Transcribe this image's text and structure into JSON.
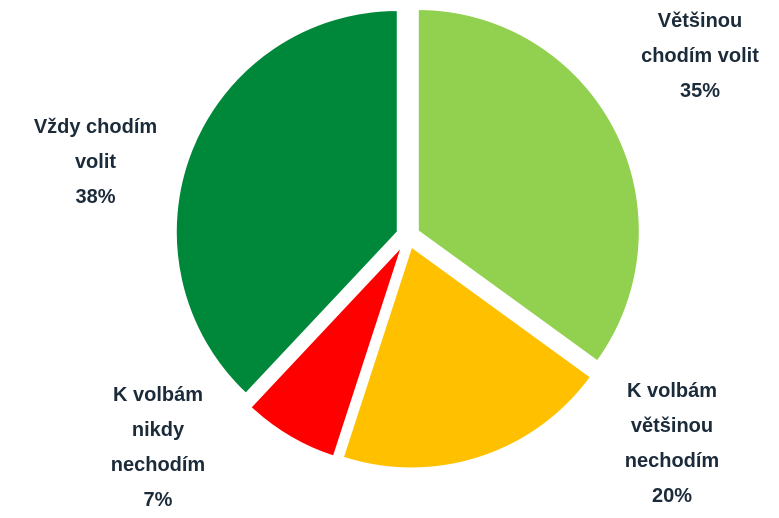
{
  "chart_data": {
    "type": "pie",
    "categories": [
      "Většinou chodím volit",
      "K volbám většinou nechodím",
      "K volbám nikdy nechodím",
      "Vždy chodím volit"
    ],
    "values": [
      35,
      20,
      7,
      38
    ],
    "value_labels": [
      "35%",
      "20%",
      "7%",
      "38%"
    ],
    "colors": [
      "#92d050",
      "#ffc000",
      "#ff0000",
      "#00883a"
    ]
  }
}
